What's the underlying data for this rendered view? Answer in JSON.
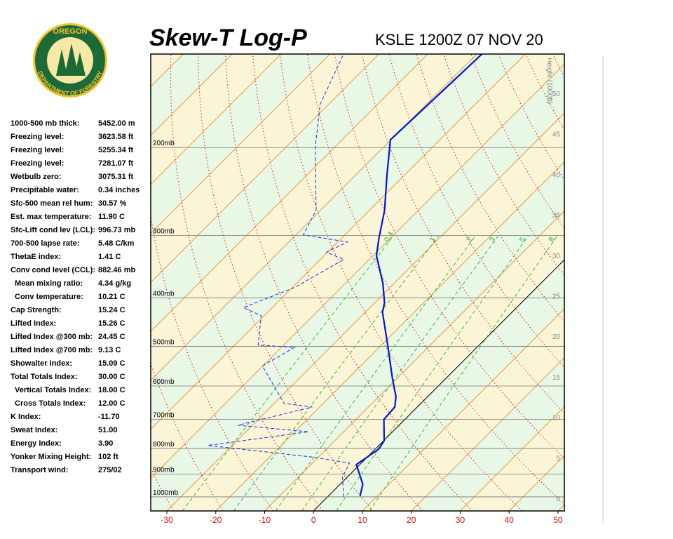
{
  "header": {
    "title": "Skew-T Log-P",
    "subtitle": "KSLE 1200Z 07 NOV 20",
    "logo": {
      "top": "OREGON",
      "bottom": "DEPARTMENT OF FORESTRY"
    }
  },
  "stats": [
    {
      "label": "1000-500 mb thick:",
      "value": "5452.00 m"
    },
    {
      "label": "Freezing level:",
      "value": "3623.58 ft"
    },
    {
      "label": "Freezing level:",
      "value": "5255.34 ft"
    },
    {
      "label": "Freezing level:",
      "value": "7281.07 ft"
    },
    {
      "label": "Wetbulb zero:",
      "value": "3075.31 ft"
    },
    {
      "label": "Precipitable water:",
      "value": "0.34 inches"
    },
    {
      "label": "Sfc-500 mean rel hum:",
      "value": "30.57 %"
    },
    {
      "label": "Est. max temperature:",
      "value": "11.90 C"
    },
    {
      "label": "Sfc-Lift cond lev (LCL):",
      "value": "996.73 mb"
    },
    {
      "label": "700-500 lapse rate:",
      "value": "5.48 C/km"
    },
    {
      "label": "ThetaE index:",
      "value": "1.41 C"
    },
    {
      "label": "Conv cond level (CCL):",
      "value": "882.46 mb"
    },
    {
      "label": "Mean mixing ratio:",
      "value": "4.34 g/kg"
    },
    {
      "label": "Conv temperature:",
      "value": "10.21 C"
    },
    {
      "label": "Cap Strength:",
      "value": "15.24 C"
    },
    {
      "label": "Lifted Index:",
      "value": "15.26 C"
    },
    {
      "label": "Lifted Index @300 mb:",
      "value": "24.45 C"
    },
    {
      "label": "Lifted Index @700 mb:",
      "value": "9.13 C"
    },
    {
      "label": "Showalter Index:",
      "value": "15.09 C"
    },
    {
      "label": "Total Totals Index:",
      "value": "30.00 C"
    },
    {
      "label": "Vertical Totals Index:",
      "value": "18.00 C"
    },
    {
      "label": "Cross Totals Index:",
      "value": "12.00 C"
    },
    {
      "label": "K Index:",
      "value": "-11.70"
    },
    {
      "label": "Sweat Index:",
      "value": "51.00"
    },
    {
      "label": "Energy Index:",
      "value": "3.90"
    },
    {
      "label": "Yonker Mixing Height:",
      "value": "102 ft"
    },
    {
      "label": "Transport wind:",
      "value": "275/02"
    }
  ],
  "chart_data": {
    "type": "skewt",
    "xlim": [
      -33.3,
      51.3
    ],
    "xticks": [
      -30,
      -20,
      -10,
      0,
      10,
      20,
      30,
      40,
      50
    ],
    "ylim": [
      1067,
      130
    ],
    "yticks": [
      {
        "value": 200,
        "label": "200mb"
      },
      {
        "value": 300,
        "label": "300mb"
      },
      {
        "value": 400,
        "label": "400mb"
      },
      {
        "value": 500,
        "label": "500mb"
      },
      {
        "value": 600,
        "label": "600mb"
      },
      {
        "value": 700,
        "label": "700mb"
      },
      {
        "value": 800,
        "label": "800mb"
      },
      {
        "value": 900,
        "label": "900mb"
      },
      {
        "value": 1000,
        "label": "1000mb"
      }
    ],
    "y2label": "Height (1000ft)",
    "y2ticks": [
      0,
      5,
      10,
      15,
      20,
      25,
      30,
      35,
      40,
      45,
      50
    ],
    "mixing_ratios": [
      0.4,
      1,
      2,
      3,
      5,
      8
    ],
    "series": [
      {
        "color": "#0018c8",
        "style": "solid",
        "pressure": [
          997,
          943,
          862,
          803,
          772,
          700,
          661,
          630,
          581,
          499,
          427,
          409,
          374,
          329,
          304,
          267,
          227,
          193,
          159,
          130
        ],
        "temperature": [
          6.5,
          4.6,
          -0.7,
          0.7,
          0.1,
          -4.3,
          -4.6,
          -6.5,
          -10.8,
          -18.5,
          -26.5,
          -28,
          -32.3,
          -39.3,
          -42.3,
          -46.9,
          -53.6,
          -60.1,
          -59.5,
          -58.9
        ]
      },
      {
        "color": "#1a2ed8",
        "style": "dashed",
        "pressure": [
          1000,
          913,
          856,
          834,
          789,
          741,
          719,
          661,
          650,
          547,
          502,
          497,
          434,
          418,
          381,
          335,
          324,
          309,
          299,
          267,
          199,
          164,
          130
        ],
        "temperature": [
          3.3,
          -1.0,
          -2.4,
          -10.5,
          -35,
          -17.2,
          -33,
          -21.5,
          -28,
          -40.1,
          -37.3,
          -45.2,
          -50.6,
          -55.9,
          -49.5,
          -45.2,
          -50.2,
          -48,
          -58.5,
          -60.9,
          -74.1,
          -81.7,
          -87.2
        ]
      }
    ]
  }
}
